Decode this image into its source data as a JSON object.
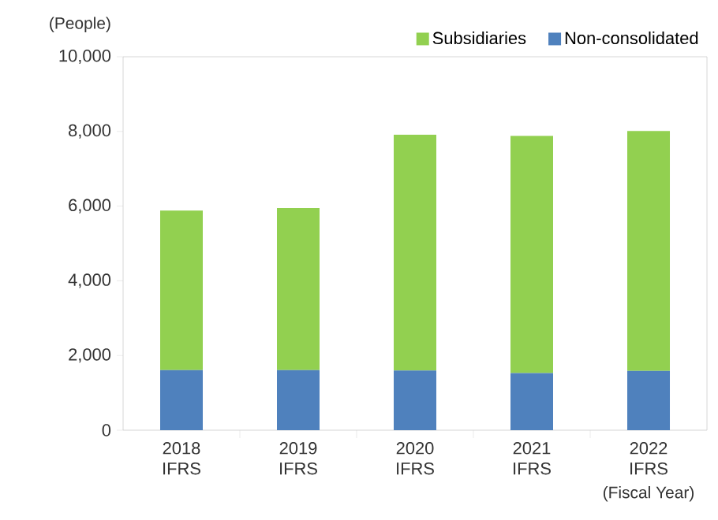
{
  "chart_data": {
    "type": "bar",
    "stacked": true,
    "ylabel": "(People)",
    "xlabel": "(Fiscal Year)",
    "categories": [
      "2018 IFRS",
      "2019 IFRS",
      "2020 IFRS",
      "2021 IFRS",
      "2022 IFRS"
    ],
    "series": [
      {
        "name": "Non-consolidated",
        "color": "#4f81bd",
        "values": [
          1610,
          1610,
          1600,
          1530,
          1590
        ]
      },
      {
        "name": "Subsidiaries",
        "color": "#92d050",
        "values": [
          4270,
          4340,
          6310,
          6350,
          6420
        ]
      }
    ],
    "ylim": [
      0,
      10000
    ],
    "yticks": [
      0,
      {
        "value": 2000,
        "label": "2,000"
      },
      {
        "value": 4000,
        "label": "4,000"
      },
      {
        "value": 6000,
        "label": "6,000"
      },
      {
        "value": 8000,
        "label": "8,000"
      },
      {
        "value": 10000,
        "label": "10,000"
      }
    ],
    "grid": false,
    "legend": "top right"
  }
}
